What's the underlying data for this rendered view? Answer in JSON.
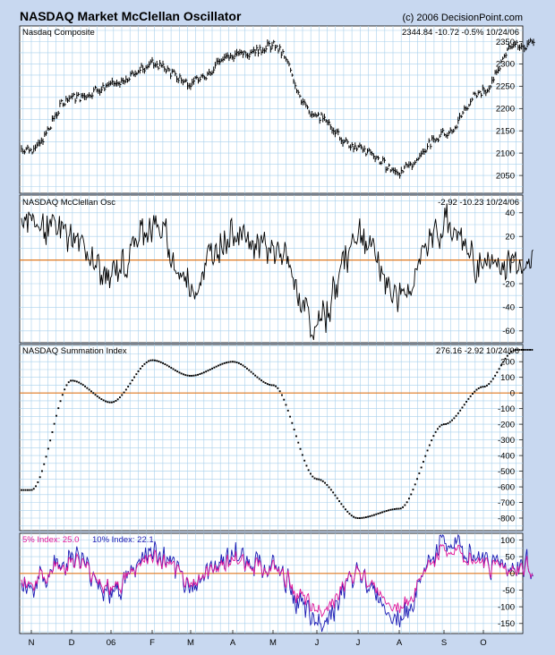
{
  "header": {
    "title": "NASDAQ Market McClellan Oscillator",
    "copyright": "(c) 2006 DecisionPoint.com"
  },
  "x_axis": {
    "months": [
      "N",
      "D",
      "06",
      "F",
      "M",
      "A",
      "M",
      "J",
      "J",
      "A",
      "S",
      "O"
    ]
  },
  "panels": {
    "composite": {
      "label": "Nasdaq Composite",
      "readout": "2344.84  -10.72  -0.5%  10/24/06"
    },
    "oscillator": {
      "label": "NASDAQ McClellan Osc",
      "readout": "-2.92  -10.23  10/24/06"
    },
    "summation": {
      "label": "NASDAQ Summation Index",
      "readout": "276.16  -2.92  10/24/06"
    },
    "pct": {
      "label_5": "5% Index: 25.0",
      "label_10": "10% Index: 22.1"
    }
  },
  "colors": {
    "frame": "#c8d8f0",
    "grid": "#a8d0ec",
    "zero_line": "#e07820",
    "price": "#000000",
    "index_5": "#e0189a",
    "index_10": "#1a1ab4"
  },
  "chart_data": [
    {
      "type": "line",
      "title": "Nasdaq Composite",
      "x": [
        "N",
        "D",
        "06",
        "F",
        "M",
        "A",
        "M",
        "J",
        "J",
        "A",
        "S",
        "O",
        "10/24/06"
      ],
      "series": [
        {
          "name": "Nasdaq Composite",
          "values": [
            2110,
            2225,
            2250,
            2300,
            2260,
            2320,
            2340,
            2180,
            2110,
            2060,
            2140,
            2240,
            2345
          ]
        }
      ],
      "ylim": [
        2010,
        2385
      ],
      "yticks": [
        2050,
        2100,
        2150,
        2200,
        2250,
        2300,
        2350
      ],
      "grid": true
    },
    {
      "type": "line",
      "title": "NASDAQ McClellan Osc",
      "x": [
        "N",
        "D",
        "06",
        "F",
        "M",
        "A",
        "M",
        "J",
        "J",
        "A",
        "S",
        "O",
        "10/24/06"
      ],
      "series": [
        {
          "name": "NASDAQ McClellan Osc",
          "values": [
            35,
            20,
            -15,
            30,
            -20,
            25,
            10,
            -55,
            20,
            -30,
            30,
            -5,
            -2.92
          ]
        }
      ],
      "ylim": [
        -70,
        55
      ],
      "yticks": [
        -60,
        -40,
        -20,
        0,
        20,
        40
      ],
      "grid": true
    },
    {
      "type": "scatter",
      "title": "NASDAQ Summation Index",
      "x": [
        "N",
        "D",
        "06",
        "F",
        "M",
        "A",
        "M",
        "J",
        "J",
        "A",
        "S",
        "O",
        "10/24/06"
      ],
      "series": [
        {
          "name": "NASDAQ Summation Index",
          "values": [
            -620,
            80,
            -60,
            210,
            110,
            200,
            50,
            -550,
            -800,
            -740,
            -200,
            40,
            276.16
          ]
        }
      ],
      "ylim": [
        -880,
        310
      ],
      "yticks": [
        -800,
        -700,
        -600,
        -500,
        -400,
        -300,
        -200,
        -100,
        0,
        100,
        200
      ],
      "grid": true
    },
    {
      "type": "line",
      "title": "",
      "x": [
        "N",
        "D",
        "06",
        "F",
        "M",
        "A",
        "M",
        "J",
        "J",
        "A",
        "S",
        "O",
        "10/24/06"
      ],
      "series": [
        {
          "name": "5% Index",
          "values": [
            -20,
            40,
            -30,
            50,
            -10,
            50,
            20,
            -100,
            -20,
            -80,
            60,
            30,
            25.0
          ]
        },
        {
          "name": "10% Index",
          "values": [
            -30,
            50,
            -50,
            60,
            -30,
            55,
            20,
            -150,
            -10,
            -130,
            90,
            40,
            22.1
          ]
        }
      ],
      "ylim": [
        -180,
        120
      ],
      "yticks": [
        -150,
        -100,
        -50,
        0,
        50,
        100
      ],
      "grid": true
    }
  ]
}
